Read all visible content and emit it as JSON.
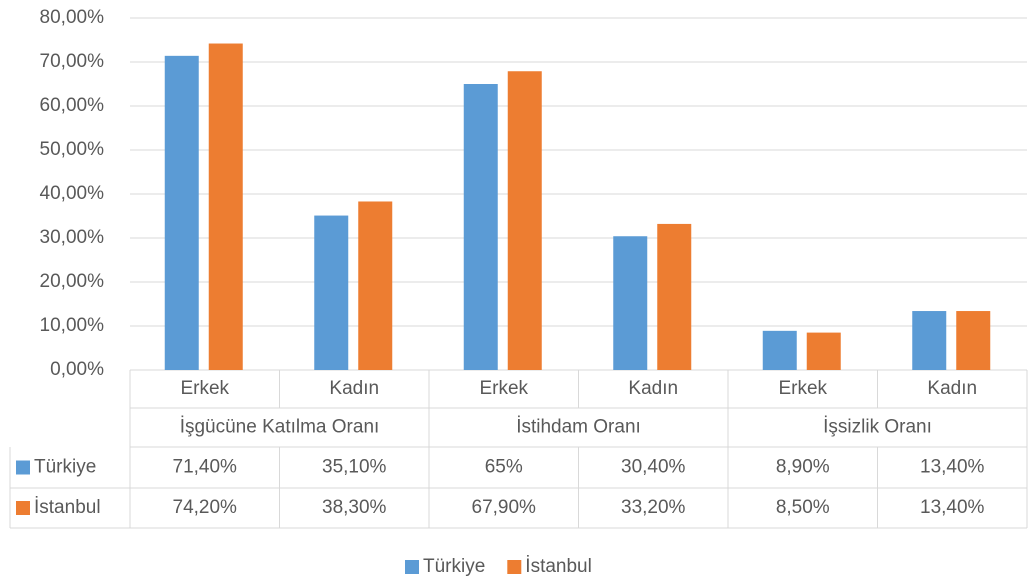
{
  "chart_data": {
    "type": "bar",
    "categories": [
      "Erkek",
      "Kadın",
      "Erkek",
      "Kadın",
      "Erkek",
      "Kadın"
    ],
    "category_groups": [
      "İşgücüne Katılma Oranı",
      "İstihdam Oranı",
      "İşsizlik Oranı"
    ],
    "series": [
      {
        "name": "Türkiye",
        "color": "#5b9bd5",
        "values": [
          71.4,
          35.1,
          65,
          30.4,
          8.9,
          13.4
        ],
        "value_labels": [
          "71,40%",
          "35,10%",
          "65%",
          "30,40%",
          "8,90%",
          "13,40%"
        ]
      },
      {
        "name": "İstanbul",
        "color": "#ed7d31",
        "values": [
          74.2,
          38.3,
          67.9,
          33.2,
          8.5,
          13.4
        ],
        "value_labels": [
          "74,20%",
          "38,30%",
          "67,90%",
          "33,20%",
          "8,50%",
          "13,40%"
        ]
      }
    ],
    "ylim": [
      0,
      80
    ],
    "yticks": [
      {
        "value": 0,
        "label": "0,00%"
      },
      {
        "value": 10,
        "label": "10,00%"
      },
      {
        "value": 20,
        "label": "20,00%"
      },
      {
        "value": 30,
        "label": "30,00%"
      },
      {
        "value": 40,
        "label": "40,00%"
      },
      {
        "value": 50,
        "label": "50,00%"
      },
      {
        "value": 60,
        "label": "60,00%"
      },
      {
        "value": 70,
        "label": "70,00%"
      },
      {
        "value": 80,
        "label": "80,00%"
      }
    ],
    "grid": true,
    "legend": "bottom"
  }
}
